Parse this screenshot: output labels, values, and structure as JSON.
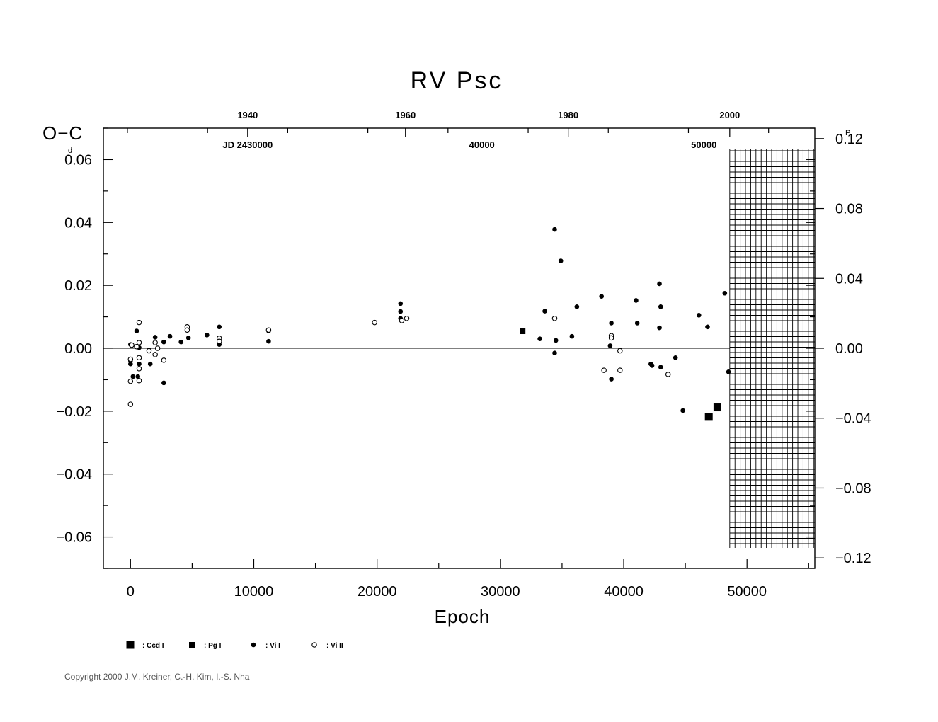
{
  "chart_data": {
    "type": "scatter",
    "title": "RV  Psc",
    "xlabel": "Epoch",
    "ylabel": "O−C",
    "ylabel_unit": "d",
    "right_unit": "P",
    "xlim": [
      -2200,
      55500
    ],
    "ylim": [
      -0.07,
      0.07
    ],
    "right_ylim": [
      -0.126,
      0.126
    ],
    "x_ticks": [
      0,
      10000,
      20000,
      30000,
      40000,
      50000
    ],
    "x_tick_labels": [
      "0",
      "10000",
      "20000",
      "30000",
      "40000",
      "50000"
    ],
    "y_ticks": [
      -0.06,
      -0.04,
      -0.02,
      0.0,
      0.02,
      0.04,
      0.06
    ],
    "y_tick_labels": [
      "−0.06",
      "−0.04",
      "−0.02",
      "0.00",
      "0.02",
      "0.04",
      "0.06"
    ],
    "right_ticks": [
      -0.12,
      -0.08,
      -0.04,
      0.0,
      0.04,
      0.08,
      0.12
    ],
    "right_tick_labels": [
      "−0.12",
      "−0.08",
      "−0.04",
      "0.00",
      "0.04",
      "0.08",
      "0.12"
    ],
    "top_year_ticks": [
      {
        "label": "1940",
        "epoch": 9500
      },
      {
        "label": "1960",
        "epoch": 22300
      },
      {
        "label": "1980",
        "epoch": 35500
      },
      {
        "label": "2000",
        "epoch": 48600
      }
    ],
    "jd_labels": [
      {
        "label": "JD  2430000",
        "epoch": 9500
      },
      {
        "label": "40000",
        "epoch": 28500
      },
      {
        "label": "50000",
        "epoch": 46500
      }
    ],
    "grid": false,
    "zero_line": true,
    "hatched_region": {
      "from_epoch": 48600,
      "to": "right edge"
    },
    "legend_position": "bottom-left",
    "series": [
      {
        "name": ": Ccd  I",
        "marker": "large-filled-square",
        "points": [
          [
            46900,
            -0.0218
          ],
          [
            47600,
            -0.0188
          ]
        ]
      },
      {
        "name": ": Pg  I",
        "marker": "small-filled-square",
        "points": [
          [
            31800,
            0.0054
          ]
        ]
      },
      {
        "name": ": Vi  I",
        "marker": "filled-circle",
        "points": [
          [
            0,
            0.0012
          ],
          [
            0,
            -0.004
          ],
          [
            0,
            -0.005
          ],
          [
            200,
            -0.009
          ],
          [
            500,
            0.0055
          ],
          [
            600,
            -0.009
          ],
          [
            700,
            -0.005
          ],
          [
            700,
            0.0002
          ],
          [
            1600,
            -0.005
          ],
          [
            2000,
            0.0035
          ],
          [
            2700,
            -0.011
          ],
          [
            2700,
            0.002
          ],
          [
            3200,
            0.0038
          ],
          [
            4100,
            0.002
          ],
          [
            4700,
            0.0033
          ],
          [
            6200,
            0.0042
          ],
          [
            7200,
            0.0068
          ],
          [
            7200,
            0.0012
          ],
          [
            11200,
            0.0055
          ],
          [
            11200,
            0.0022
          ],
          [
            21900,
            0.0142
          ],
          [
            21900,
            0.0117
          ],
          [
            21900,
            0.0095
          ],
          [
            33200,
            0.003
          ],
          [
            33600,
            0.0118
          ],
          [
            34400,
            0.0378
          ],
          [
            34400,
            -0.0015
          ],
          [
            34500,
            0.0025
          ],
          [
            34900,
            0.0278
          ],
          [
            35800,
            0.0038
          ],
          [
            36200,
            0.0132
          ],
          [
            38200,
            0.0165
          ],
          [
            38900,
            0.0008
          ],
          [
            39000,
            -0.0098
          ],
          [
            39000,
            0.008
          ],
          [
            41000,
            0.0152
          ],
          [
            41100,
            0.008
          ],
          [
            42200,
            -0.005
          ],
          [
            42300,
            -0.0055
          ],
          [
            42900,
            0.0205
          ],
          [
            42900,
            0.0065
          ],
          [
            43000,
            -0.006
          ],
          [
            43000,
            0.0132
          ],
          [
            44200,
            -0.003
          ],
          [
            44800,
            -0.0198
          ],
          [
            46100,
            0.0105
          ],
          [
            46800,
            0.0068
          ],
          [
            48200,
            0.0175
          ],
          [
            48500,
            -0.0075
          ]
        ]
      },
      {
        "name": ": Vi  II",
        "marker": "open-circle",
        "points": [
          [
            0,
            -0.0105
          ],
          [
            0,
            -0.0178
          ],
          [
            0,
            -0.0035
          ],
          [
            100,
            0.001
          ],
          [
            500,
            0.0005
          ],
          [
            700,
            0.0082
          ],
          [
            700,
            0.0018
          ],
          [
            700,
            -0.003
          ],
          [
            700,
            -0.0065
          ],
          [
            700,
            -0.0103
          ],
          [
            1500,
            -0.0008
          ],
          [
            2000,
            0.0018
          ],
          [
            2000,
            -0.002
          ],
          [
            2200,
            0.0
          ],
          [
            2700,
            -0.0038
          ],
          [
            4600,
            0.0068
          ],
          [
            4600,
            0.0058
          ],
          [
            7200,
            0.0032
          ],
          [
            7200,
            0.0022
          ],
          [
            11200,
            0.0058
          ],
          [
            19800,
            0.0082
          ],
          [
            22000,
            0.0088
          ],
          [
            22400,
            0.0095
          ],
          [
            34400,
            0.0095
          ],
          [
            38400,
            -0.007
          ],
          [
            39000,
            0.004
          ],
          [
            39000,
            0.0033
          ],
          [
            39700,
            -0.0008
          ],
          [
            39700,
            -0.007
          ],
          [
            43600,
            -0.0083
          ]
        ]
      }
    ]
  },
  "copyright": "Copyright 2000 J.M. Kreiner, C.-H. Kim, I.-S. Nha"
}
